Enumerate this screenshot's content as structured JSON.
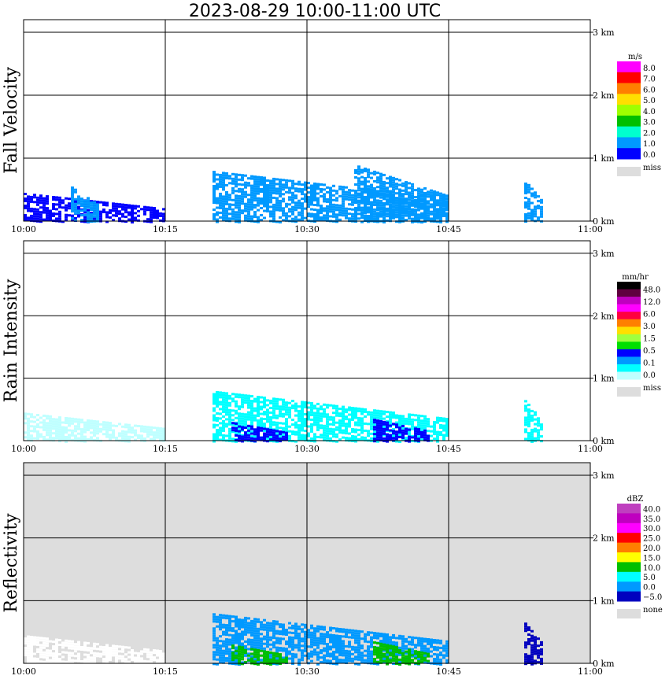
{
  "title": "2023-08-29   10:00-11:00 UTC",
  "x_ticks": [
    "10:00",
    "10:15",
    "10:30",
    "10:45",
    "11:00"
  ],
  "y_ticks": [
    "0 km",
    "1 km",
    "2 km",
    "3 km"
  ],
  "chart_data": [
    {
      "type": "heatmap",
      "ylabel": "Fall Velocity",
      "xlim": [
        "10:00",
        "11:00"
      ],
      "ylim_km": [
        0,
        3.2
      ],
      "grid": true,
      "legend": {
        "unit": "m/s",
        "labels": [
          "8.0",
          "7.0",
          "6.0",
          "5.0",
          "4.0",
          "3.0",
          "2.0",
          "1.0",
          "0.0"
        ],
        "colors": [
          "#ff00ff",
          "#ff0000",
          "#ff7f00",
          "#ffdf00",
          "#9fff00",
          "#00bf00",
          "#00ffcf",
          "#0099ff",
          "#0000ff"
        ],
        "miss_label": "miss",
        "miss_color": "#dddddd"
      },
      "echoes": [
        {
          "start": "10:00",
          "end": "10:15",
          "top_km": 0.45,
          "color": "#0000ff"
        },
        {
          "start": "10:05",
          "end": "10:08",
          "top_km": 0.55,
          "color": "#0099ff"
        },
        {
          "start": "10:20",
          "end": "10:45",
          "top_km": 0.8,
          "color": "#0099ff"
        },
        {
          "start": "10:35",
          "end": "10:45",
          "top_km": 0.9,
          "color": "#0099ff"
        },
        {
          "start": "10:53",
          "end": "10:55",
          "top_km": 0.65,
          "color": "#0099ff"
        }
      ]
    },
    {
      "type": "heatmap",
      "ylabel": "Rain Intensity",
      "xlim": [
        "10:00",
        "11:00"
      ],
      "ylim_km": [
        0,
        3.2
      ],
      "grid": true,
      "legend": {
        "unit": "mm/hr",
        "labels": [
          "48.0",
          "12.0",
          "6.0",
          "3.0",
          "1.5",
          "0.5",
          "0.1",
          "0.0"
        ],
        "colors": [
          "#000000",
          "#5f003f",
          "#bf00bf",
          "#ff00ff",
          "#ff003f",
          "#ff7f00",
          "#ffdf00",
          "#9fff3f",
          "#00df00",
          "#0000ff",
          "#0099ff",
          "#00ffff",
          "#bfffff"
        ],
        "miss_label": "miss",
        "miss_color": "#dddddd"
      },
      "echoes": [
        {
          "start": "10:00",
          "end": "10:15",
          "top_km": 0.45,
          "color": "#bfffff"
        },
        {
          "start": "10:20",
          "end": "10:45",
          "top_km": 0.8,
          "color": "#00ffff"
        },
        {
          "start": "10:22",
          "end": "10:28",
          "top_km": 0.3,
          "color": "#0000ff"
        },
        {
          "start": "10:37",
          "end": "10:43",
          "top_km": 0.35,
          "color": "#0000ff"
        },
        {
          "start": "10:53",
          "end": "10:55",
          "top_km": 0.65,
          "color": "#00ffff"
        }
      ]
    },
    {
      "type": "heatmap",
      "ylabel": "Reflectivity",
      "xlim": [
        "10:00",
        "11:00"
      ],
      "ylim_km": [
        0,
        3.2
      ],
      "grid": true,
      "legend": {
        "unit": "dBZ",
        "labels": [
          "40.0",
          "35.0",
          "30.0",
          "25.0",
          "20.0",
          "15.0",
          "10.0",
          "5.0",
          "0.0",
          "−5.0"
        ],
        "colors": [
          "#bf3fbf",
          "#bf00bf",
          "#ff00ff",
          "#ff0000",
          "#ff7f00",
          "#ffff00",
          "#00bf00",
          "#00ffff",
          "#0099ff",
          "#0000bf"
        ],
        "miss_label": "none",
        "miss_color": "#dddddd"
      },
      "echoes": [
        {
          "start": "10:00",
          "end": "10:15",
          "top_km": 0.45,
          "color": "#ffffff"
        },
        {
          "start": "10:20",
          "end": "10:45",
          "top_km": 0.8,
          "color": "#0099ff"
        },
        {
          "start": "10:22",
          "end": "10:28",
          "top_km": 0.3,
          "color": "#00bf00"
        },
        {
          "start": "10:37",
          "end": "10:43",
          "top_km": 0.35,
          "color": "#00bf00"
        },
        {
          "start": "10:53",
          "end": "10:55",
          "top_km": 0.65,
          "color": "#0000bf"
        }
      ]
    }
  ]
}
